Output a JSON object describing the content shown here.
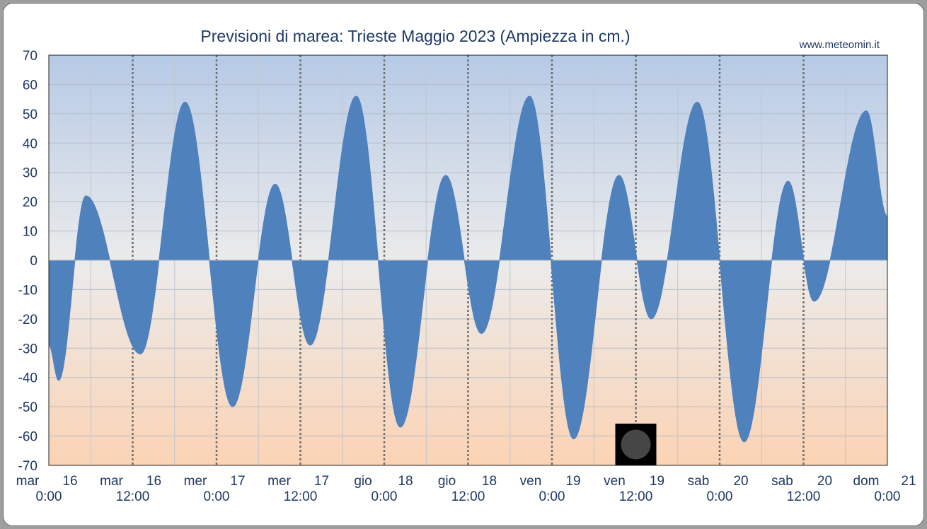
{
  "chart_data": {
    "type": "area",
    "title": "Previsioni di marea: Trieste Maggio 2023 (Ampiezza in cm.)",
    "credit": "www.meteomin.it",
    "xlabel": "",
    "ylabel": "",
    "ylim": [
      -70,
      70
    ],
    "yticks": [
      70,
      60,
      50,
      40,
      30,
      20,
      10,
      0,
      -10,
      -20,
      -30,
      -40,
      -50,
      -60,
      -70
    ],
    "xlim_hours": [
      0,
      120
    ],
    "x_ticks": [
      {
        "day": "mar",
        "date": "16",
        "time": "0:00"
      },
      {
        "day": "mar",
        "date": "16",
        "time": "12:00"
      },
      {
        "day": "mer",
        "date": "17",
        "time": "0:00"
      },
      {
        "day": "mer",
        "date": "17",
        "time": "12:00"
      },
      {
        "day": "gio",
        "date": "18",
        "time": "0:00"
      },
      {
        "day": "gio",
        "date": "18",
        "time": "12:00"
      },
      {
        "day": "ven",
        "date": "19",
        "time": "0:00"
      },
      {
        "day": "ven",
        "date": "19",
        "time": "12:00"
      },
      {
        "day": "sab",
        "date": "20",
        "time": "0:00"
      },
      {
        "day": "sab",
        "date": "20",
        "time": "12:00"
      },
      {
        "day": "dom",
        "date": "21",
        "time": "0:00"
      }
    ],
    "series": [
      {
        "values": [
          [
            0,
            -29
          ],
          [
            1.4,
            -41
          ],
          [
            5.3,
            22
          ],
          [
            13.1,
            -32
          ],
          [
            19.5,
            54
          ],
          [
            26.3,
            -50
          ],
          [
            32.4,
            26
          ],
          [
            37.4,
            -29
          ],
          [
            44.0,
            56
          ],
          [
            50.3,
            -57
          ],
          [
            56.8,
            29
          ],
          [
            61.9,
            -25
          ],
          [
            68.8,
            56
          ],
          [
            75.1,
            -61
          ],
          [
            81.6,
            29
          ],
          [
            86.2,
            -20
          ],
          [
            92.8,
            54
          ],
          [
            99.5,
            -62
          ],
          [
            105.8,
            27
          ],
          [
            109.5,
            -14
          ],
          [
            117.0,
            51
          ],
          [
            120.0,
            15
          ]
        ]
      }
    ],
    "grid": true,
    "background_gradient": [
      "#b6cae6",
      "#ebebeb",
      "#fbd3b4"
    ],
    "fill_color": "#4f81bd",
    "moon_phase_icon": {
      "symbol": "moon-phase-icon",
      "hour": 84
    }
  }
}
